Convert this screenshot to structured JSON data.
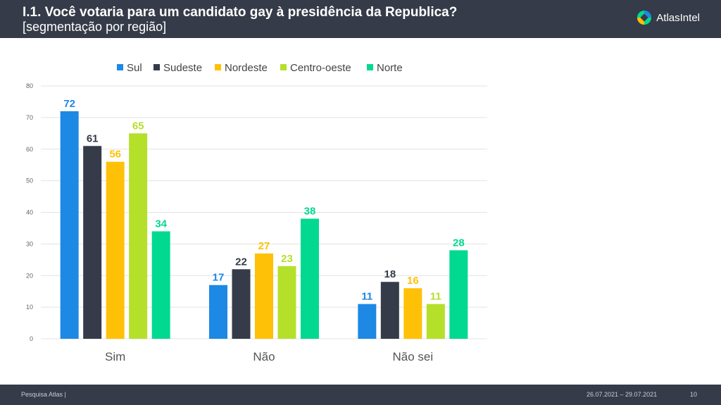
{
  "header": {
    "title": "I.1. Você votaria para um candidato gay à presidência da Republica?",
    "subtitle": "[segmentação por região]",
    "logo_text": "AtlasIntel"
  },
  "footer": {
    "left": "Pesquisa Atlas  |",
    "dates": "26.07.2021 – 29.07.2021",
    "page": "10"
  },
  "colors": {
    "header_bg": "#353b48",
    "Sul": "#1e88e5",
    "Sudeste": "#353b48",
    "Nordeste": "#ffc107",
    "Centro-oeste": "#b5e02a",
    "Norte": "#00d98f"
  },
  "chart_data": {
    "type": "bar",
    "categories": [
      "Sim",
      "Não",
      "Não sei"
    ],
    "series": [
      {
        "name": "Sul",
        "values": [
          72,
          17,
          11
        ],
        "color": "#1e88e5"
      },
      {
        "name": "Sudeste",
        "values": [
          61,
          22,
          18
        ],
        "color": "#353b48"
      },
      {
        "name": "Nordeste",
        "values": [
          56,
          27,
          16
        ],
        "color": "#ffc107"
      },
      {
        "name": "Centro-oeste",
        "values": [
          65,
          23,
          11
        ],
        "color": "#b5e02a"
      },
      {
        "name": "Norte",
        "values": [
          34,
          38,
          28
        ],
        "color": "#00d98f"
      }
    ],
    "ylim": [
      0,
      80
    ],
    "yticks": [
      0,
      10,
      20,
      30,
      40,
      50,
      60,
      70,
      80
    ],
    "grid": true,
    "legend_position": "top"
  }
}
